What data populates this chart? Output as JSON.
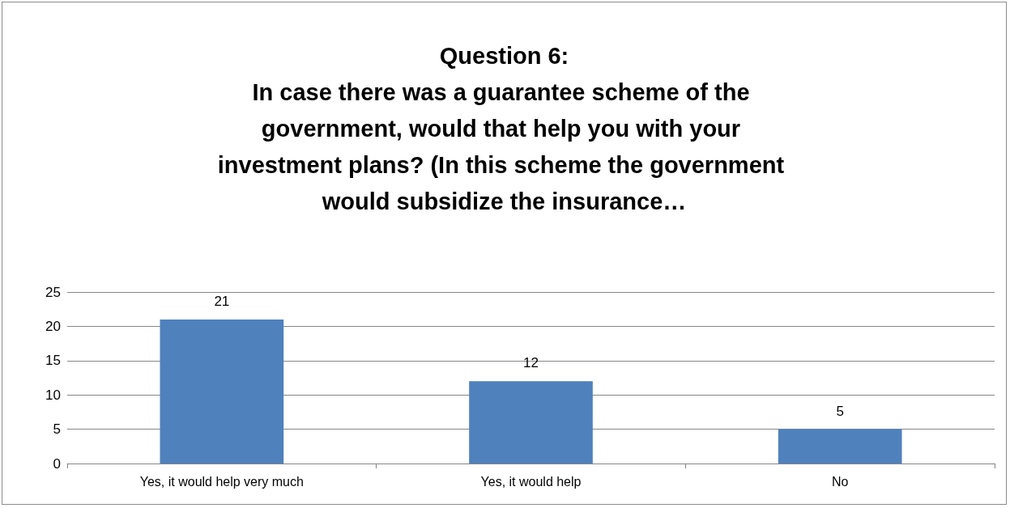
{
  "chart_data": {
    "type": "bar",
    "title": "Question 6:\nIn case there was a guarantee scheme of the government, would that help you with your investment plans? (In this scheme the government would subsidize the insurance…",
    "categories": [
      "Yes, it would help very much",
      "Yes, it would help",
      "No"
    ],
    "values": [
      21,
      12,
      5
    ],
    "color": "#4f81bd",
    "ylim": [
      0,
      25
    ],
    "yticks": [
      0,
      5,
      10,
      15,
      20,
      25
    ],
    "grid": "y",
    "data_labels": true
  }
}
